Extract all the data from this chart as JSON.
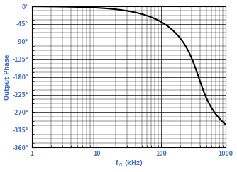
{
  "title": "",
  "xlabel": "f$_{IN}$ (kHz)",
  "ylabel": "Output Phase",
  "x_min": 1,
  "x_max": 1000,
  "y_min": -360,
  "y_max": 0,
  "y_ticks": [
    0,
    -45,
    -90,
    -135,
    -180,
    -225,
    -270,
    -315,
    -360
  ],
  "y_tick_labels": [
    "0°",
    "-45°",
    "-90°",
    "-135°",
    "-180°",
    "-225°",
    "-270°",
    "-315°",
    "-360°"
  ],
  "x_ticks": [
    1,
    10,
    100,
    1000
  ],
  "x_tick_labels": [
    "1",
    "10",
    "100",
    "1000"
  ],
  "line_color": "#000000",
  "line_width": 1.5,
  "label_color": "#4472c4",
  "background_color": "#ffffff",
  "grid_major_color": "#000000",
  "grid_minor_color": "#000000",
  "fc": 380,
  "poles": 4
}
